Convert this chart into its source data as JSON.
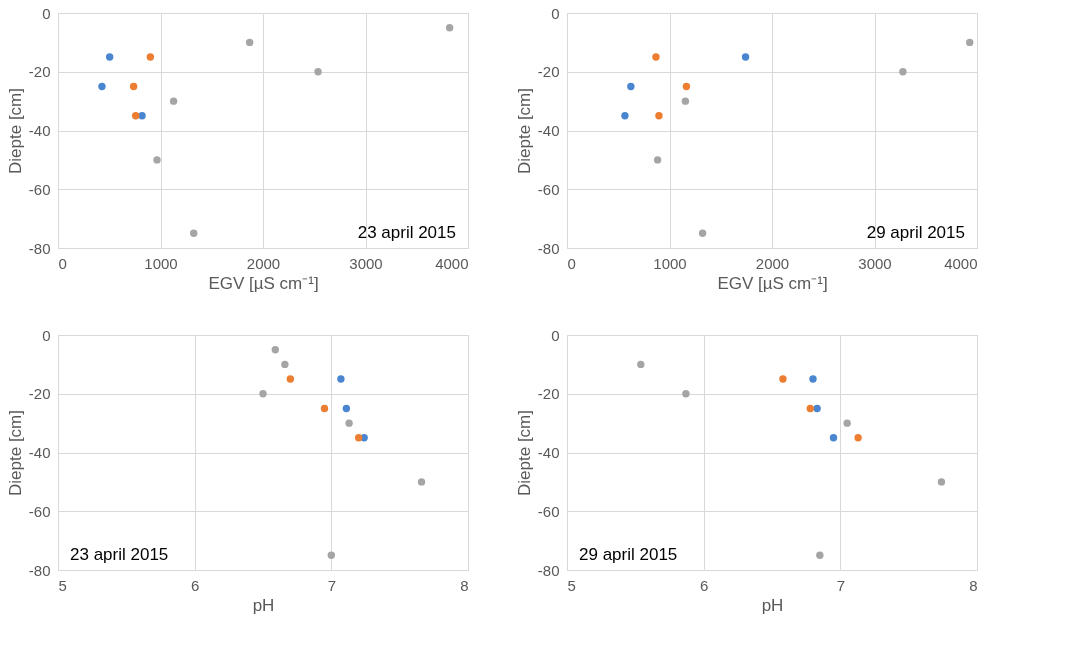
{
  "chart_data": [
    {
      "type": "scatter",
      "xlabel": "EGV [µS cm⁻¹]",
      "ylabel": "Diepte [cm]",
      "xlim": [
        0,
        4000
      ],
      "xticks": [
        0,
        1000,
        2000,
        3000,
        4000
      ],
      "ylim": [
        -80,
        0
      ],
      "yticks": [
        -80,
        -60,
        -40,
        -20,
        0
      ],
      "grid": true,
      "marker": "circle",
      "annotations": [
        "23 april 2015"
      ],
      "series": [
        {
          "color": "#4a86d0",
          "x": [
            504,
            429,
            820
          ],
          "values": [
            -15,
            -25,
            -35
          ]
        },
        {
          "color": "#ed7d31",
          "x": [
            901,
            738,
            758
          ],
          "values": [
            -15,
            -25,
            -35
          ]
        },
        {
          "color": "#a5a5a5",
          "x": [
            3821,
            1870,
            2537,
            1128,
            966,
            1324
          ],
          "values": [
            -5,
            -10,
            -20,
            -30,
            -50,
            -75
          ]
        }
      ]
    },
    {
      "type": "scatter",
      "xlabel": "EGV [µS cm⁻¹]",
      "ylabel": "Diepte [cm]",
      "xlim": [
        0,
        4000
      ],
      "xticks": [
        0,
        1000,
        2000,
        3000,
        4000
      ],
      "ylim": [
        -80,
        0
      ],
      "yticks": [
        -80,
        -60,
        -40,
        -20,
        0
      ],
      "grid": true,
      "marker": "circle",
      "annotations": [
        "29 april 2015"
      ],
      "series": [
        {
          "color": "#4a86d0",
          "x": [
            1742,
            623,
            565
          ],
          "values": [
            -15,
            -25,
            -35
          ]
        },
        {
          "color": "#ed7d31",
          "x": [
            868,
            1165,
            897
          ],
          "values": [
            -15,
            -25,
            -35
          ]
        },
        {
          "color": "#a5a5a5",
          "x": [
            3929,
            3277,
            1155,
            884,
            1323
          ],
          "values": [
            -10,
            -20,
            -30,
            -50,
            -75
          ]
        }
      ]
    },
    {
      "type": "scatter",
      "xlabel": "pH",
      "ylabel": "Diepte [cm]",
      "xlim": [
        5,
        8
      ],
      "xticks": [
        5,
        6,
        7,
        8
      ],
      "ylim": [
        -80,
        0
      ],
      "yticks": [
        -80,
        -60,
        -40,
        -20,
        0
      ],
      "grid": true,
      "marker": "circle",
      "annotations": [
        "23 april 2015"
      ],
      "series": [
        {
          "color": "#4a86d0",
          "x": [
            7.07,
            7.11,
            7.24
          ],
          "values": [
            -15,
            -25,
            -35
          ]
        },
        {
          "color": "#ed7d31",
          "x": [
            6.7,
            6.95,
            7.2
          ],
          "values": [
            -15,
            -25,
            -35
          ]
        },
        {
          "color": "#a5a5a5",
          "x": [
            6.59,
            6.66,
            6.5,
            7.13,
            7.66,
            7.0
          ],
          "values": [
            -5,
            -10,
            -20,
            -30,
            -50,
            -75
          ]
        }
      ]
    },
    {
      "type": "scatter",
      "xlabel": "pH",
      "ylabel": "Diepte [cm]",
      "xlim": [
        5,
        8
      ],
      "xticks": [
        5,
        6,
        7,
        8
      ],
      "ylim": [
        -80,
        0
      ],
      "yticks": [
        -80,
        -60,
        -40,
        -20,
        0
      ],
      "grid": true,
      "marker": "circle",
      "annotations": [
        "29 april 2015"
      ],
      "series": [
        {
          "color": "#4a86d0",
          "x": [
            6.8,
            6.83,
            6.95
          ],
          "values": [
            -15,
            -25,
            -35
          ]
        },
        {
          "color": "#ed7d31",
          "x": [
            6.58,
            6.78,
            7.13
          ],
          "values": [
            -15,
            -25,
            -35
          ]
        },
        {
          "color": "#a5a5a5",
          "x": [
            5.54,
            5.87,
            7.05,
            7.74,
            6.85
          ],
          "values": [
            -10,
            -20,
            -30,
            -50,
            -75
          ]
        }
      ]
    }
  ]
}
